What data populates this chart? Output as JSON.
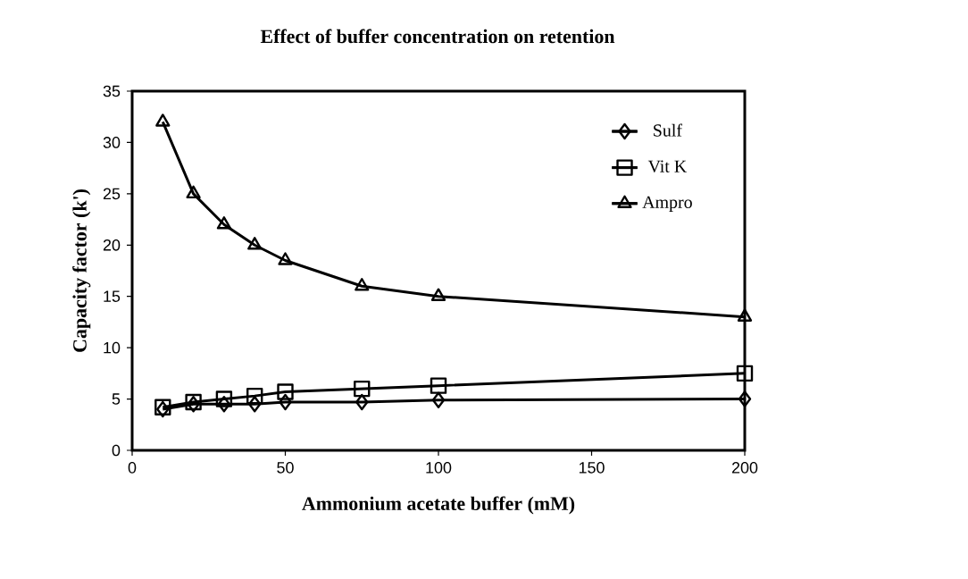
{
  "chart_data": {
    "type": "line",
    "title": "Effect of buffer concentration on retention",
    "xlabel": "Ammonium acetate buffer (mM)",
    "ylabel": "Capacity factor (k')",
    "x": [
      10,
      20,
      30,
      40,
      50,
      75,
      100,
      200
    ],
    "series": [
      {
        "name": "Sulf",
        "color": "#000000",
        "marker": "diamond",
        "values": [
          4.0,
          4.5,
          4.5,
          4.5,
          4.7,
          4.7,
          4.9,
          5.0
        ]
      },
      {
        "name": "Vit K",
        "color": "#000000",
        "marker": "square",
        "values": [
          4.2,
          4.7,
          5.0,
          5.3,
          5.7,
          6.0,
          6.3,
          7.5
        ]
      },
      {
        "name": "Ampro",
        "color": "#000000",
        "marker": "triangle",
        "values": [
          32,
          25,
          22,
          20,
          18.5,
          16,
          15,
          13
        ]
      }
    ],
    "xlim": [
      0,
      200
    ],
    "xticks": [
      0,
      50,
      100,
      150,
      200
    ],
    "ylim": [
      0,
      35
    ],
    "yticks": [
      0,
      5,
      10,
      15,
      20,
      25,
      30,
      35
    ],
    "grid": false,
    "legend": "top right",
    "line_style": "solid"
  }
}
